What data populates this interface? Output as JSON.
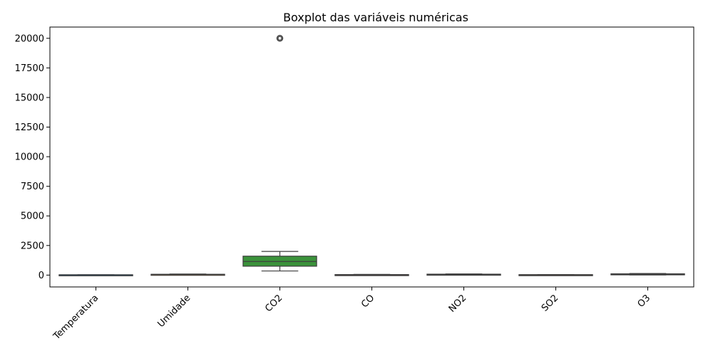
{
  "chart_data": {
    "type": "box",
    "title": "Boxplot das variáveis numéricas",
    "xlabel": "",
    "ylabel": "",
    "ylim": [
      -1000,
      20950
    ],
    "yticks": [
      0,
      2500,
      5000,
      7500,
      10000,
      12500,
      15000,
      17500,
      20000
    ],
    "ytick_labels": [
      "0",
      "2500",
      "5000",
      "7500",
      "10000",
      "12500",
      "15000",
      "17500",
      "20000"
    ],
    "grid": false,
    "categories": [
      "Temperatura",
      "Umidade",
      "CO2",
      "CO",
      "NO2",
      "SO2",
      "O3"
    ],
    "series": [
      {
        "whisker_low": 15,
        "q1": 20,
        "median": 25,
        "q3": 30,
        "whisker_high": 35,
        "outliers": [],
        "color": "#3274a1"
      },
      {
        "whisker_low": 20,
        "q1": 35,
        "median": 55,
        "q3": 70,
        "whisker_high": 90,
        "outliers": [],
        "color": "#e1812c"
      },
      {
        "whisker_low": 350,
        "q1": 750,
        "median": 1150,
        "q3": 1600,
        "whisker_high": 2000,
        "outliers": [
          20000
        ],
        "color": "#3a923a"
      },
      {
        "whisker_low": 0,
        "q1": 10,
        "median": 25,
        "q3": 45,
        "whisker_high": 60,
        "outliers": [],
        "color": "#c03d3e"
      },
      {
        "whisker_low": 10,
        "q1": 30,
        "median": 55,
        "q3": 80,
        "whisker_high": 100,
        "outliers": [],
        "color": "#9372b2"
      },
      {
        "whisker_low": 0,
        "q1": 10,
        "median": 25,
        "q3": 40,
        "whisker_high": 50,
        "outliers": [],
        "color": "#845b53"
      },
      {
        "whisker_low": 10,
        "q1": 40,
        "median": 75,
        "q3": 110,
        "whisker_high": 140,
        "outliers": [],
        "color": "#d684bd"
      }
    ]
  }
}
